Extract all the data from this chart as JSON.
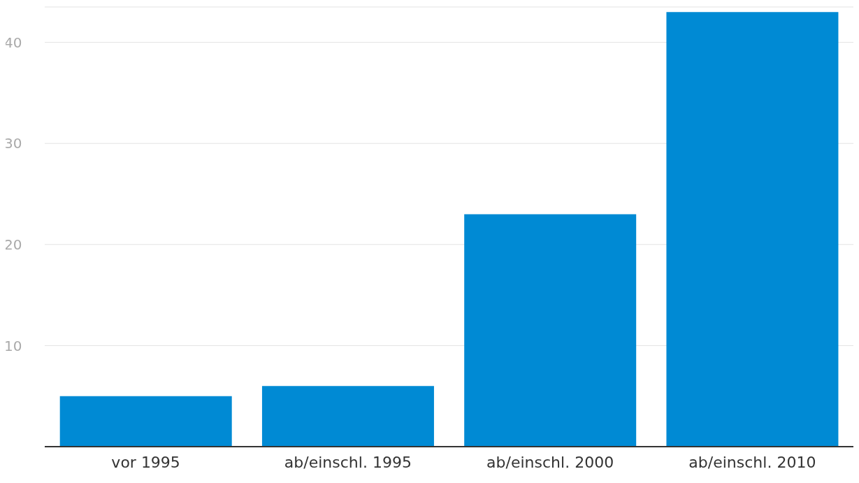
{
  "chart_data": {
    "type": "bar",
    "categories": [
      "vor 1995",
      "ab/einschl. 1995",
      "ab/einschl. 2000",
      "ab/einschl. 2010"
    ],
    "values": [
      5,
      6,
      23,
      43
    ],
    "color": "#008ad4",
    "ylim": [
      0,
      43.5
    ],
    "yticks": [
      10,
      20,
      30,
      40
    ],
    "grid": "y"
  }
}
